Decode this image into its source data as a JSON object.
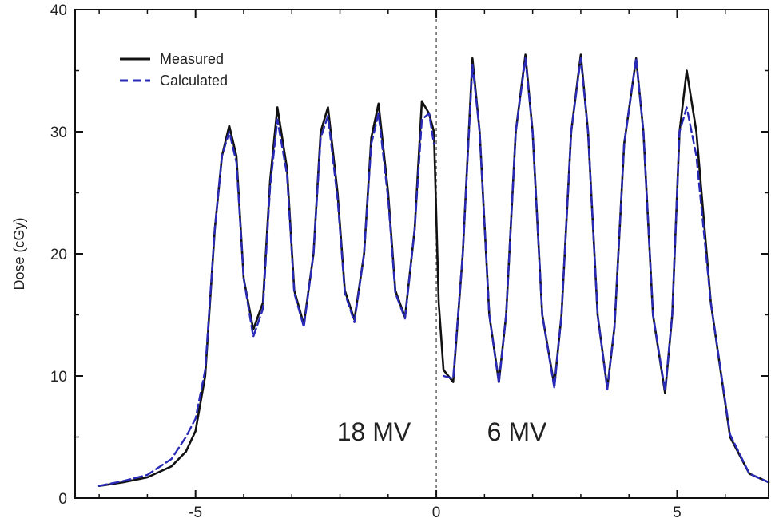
{
  "colors": {
    "measured": "#111111",
    "calculated": "#2a2ab8",
    "axis": "#111111",
    "divider": "#666666"
  },
  "chart_data": {
    "type": "line",
    "title": "",
    "xlabel": "",
    "ylabel": "Dose (cGy)",
    "xlim": [
      -7.5,
      6.9
    ],
    "ylim": [
      0,
      40
    ],
    "xticks": [
      -5,
      0,
      5
    ],
    "yticks": [
      0,
      10,
      20,
      30,
      40
    ],
    "grid": false,
    "legend": "top-left",
    "divider_x": 0,
    "region_labels": [
      "18 MV",
      "6 MV"
    ],
    "series": [
      {
        "name": "Measured",
        "style": "solid",
        "x": [
          -7,
          -6.5,
          -6,
          -5.5,
          -5.2,
          -5,
          -4.8,
          -4.6,
          -4.45,
          -4.3,
          -4.15,
          -4.0,
          -3.8,
          -3.6,
          -3.45,
          -3.3,
          -3.1,
          -2.95,
          -2.75,
          -2.55,
          -2.4,
          -2.25,
          -2.05,
          -1.9,
          -1.7,
          -1.5,
          -1.35,
          -1.2,
          -1.0,
          -0.85,
          -0.65,
          -0.45,
          -0.3,
          -0.15,
          -0.05,
          0.05,
          0.15,
          0.35,
          0.55,
          0.75,
          0.9,
          1.1,
          1.3,
          1.45,
          1.65,
          1.85,
          2.0,
          2.2,
          2.45,
          2.6,
          2.8,
          3.0,
          3.15,
          3.35,
          3.55,
          3.7,
          3.9,
          4.15,
          4.3,
          4.5,
          4.75,
          4.9,
          5.05,
          5.2,
          5.4,
          5.7,
          6.1,
          6.5,
          6.9
        ],
        "y": [
          1.0,
          1.3,
          1.7,
          2.6,
          3.8,
          5.5,
          10.0,
          22.0,
          28.0,
          30.5,
          28.0,
          18.0,
          13.8,
          16.0,
          26.0,
          32.0,
          27.0,
          17.0,
          14.2,
          20.0,
          30.0,
          32.0,
          25.0,
          17.0,
          14.6,
          20.0,
          29.5,
          32.3,
          25.0,
          17.0,
          14.8,
          22.0,
          32.5,
          31.5,
          30.0,
          16.0,
          10.5,
          9.5,
          20.0,
          36.0,
          30.0,
          15.0,
          9.5,
          15.0,
          30.0,
          36.3,
          30.0,
          15.0,
          9.2,
          15.0,
          30.0,
          36.3,
          30.0,
          15.0,
          9.0,
          14.0,
          29.0,
          36.0,
          30.0,
          15.0,
          8.6,
          15.0,
          30.0,
          35.0,
          30.0,
          16.0,
          5.0,
          2.0,
          1.3
        ]
      },
      {
        "name": "Calculated",
        "style": "dashed",
        "x": [
          -7,
          -6.5,
          -6,
          -5.5,
          -5.2,
          -5,
          -4.8,
          -4.6,
          -4.45,
          -4.3,
          -4.15,
          -4.0,
          -3.8,
          -3.6,
          -3.45,
          -3.3,
          -3.1,
          -2.95,
          -2.75,
          -2.55,
          -2.4,
          -2.25,
          -2.05,
          -1.9,
          -1.7,
          -1.5,
          -1.35,
          -1.2,
          -1.0,
          -0.85,
          -0.65,
          -0.45,
          -0.3,
          -0.15,
          -0.05,
          0.05,
          0.15,
          0.35,
          0.55,
          0.75,
          0.9,
          1.1,
          1.3,
          1.45,
          1.65,
          1.85,
          2.0,
          2.2,
          2.45,
          2.6,
          2.8,
          3.0,
          3.15,
          3.35,
          3.55,
          3.7,
          3.9,
          4.15,
          4.3,
          4.5,
          4.75,
          4.9,
          5.05,
          5.2,
          5.4,
          5.7,
          6.1,
          6.5,
          6.9
        ],
        "y": [
          1.0,
          1.4,
          1.9,
          3.2,
          5.0,
          6.5,
          10.5,
          22.0,
          28.0,
          30.0,
          27.5,
          18.0,
          13.2,
          15.5,
          25.5,
          31.0,
          26.5,
          16.8,
          14.0,
          20.0,
          29.5,
          31.3,
          24.5,
          16.8,
          14.4,
          20.0,
          29.0,
          31.5,
          24.5,
          16.8,
          14.7,
          22.0,
          31.0,
          31.5,
          29.0,
          null,
          10.0,
          9.8,
          20.0,
          35.5,
          30.0,
          15.0,
          9.4,
          15.0,
          30.0,
          36.0,
          30.0,
          15.0,
          9.0,
          15.0,
          30.0,
          36.0,
          30.0,
          15.0,
          8.9,
          14.0,
          29.0,
          36.0,
          30.0,
          15.0,
          8.8,
          15.0,
          30.0,
          32.0,
          28.0,
          16.0,
          5.2,
          2.0,
          1.3
        ]
      }
    ]
  }
}
